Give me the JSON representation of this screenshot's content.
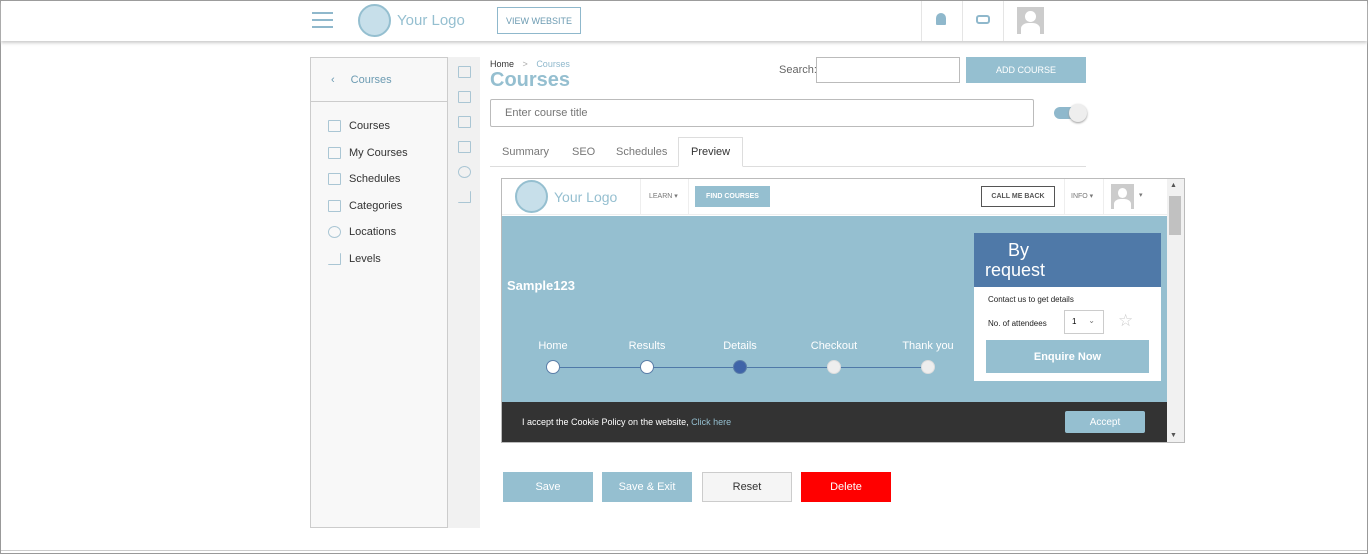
{
  "header": {
    "logo_text": "Your Logo",
    "view_website": "VIEW WEBSITE"
  },
  "sidebar": {
    "back_label": "Courses",
    "items": [
      {
        "label": "Courses",
        "icon": "courses-icon"
      },
      {
        "label": "My Courses",
        "icon": "my-courses-icon"
      },
      {
        "label": "Schedules",
        "icon": "calendar-icon"
      },
      {
        "label": "Categories",
        "icon": "categories-icon"
      },
      {
        "label": "Locations",
        "icon": "location-icon"
      },
      {
        "label": "Levels",
        "icon": "levels-icon"
      }
    ]
  },
  "breadcrumb": {
    "home": "Home",
    "sep": ">",
    "current": "Courses"
  },
  "page_title": "Courses",
  "search": {
    "label": "Search:",
    "value": ""
  },
  "add_course": "ADD COURSE",
  "course_title": {
    "placeholder": "Enter course title",
    "value": ""
  },
  "toggle": {
    "on": true
  },
  "tabs": [
    "Summary",
    "SEO",
    "Schedules",
    "Preview"
  ],
  "active_tab": "Preview",
  "preview": {
    "logo_text": "Your Logo",
    "learn": "LEARN",
    "find_courses": "FIND COURSES",
    "call_me_back": "CALL ME BACK",
    "info": "INFO",
    "course_name": "Sample123",
    "steps": [
      "Home",
      "Results",
      "Details",
      "Checkout",
      "Thank you"
    ],
    "current_step": "Details",
    "card_title_1": "By",
    "card_title_2": "request",
    "contact": "Contact us to get details",
    "attendees_label": "No. of attendees",
    "attendees_value": "1",
    "enquire": "Enquire Now",
    "cookie_text": "I accept the Cookie Policy on the website,",
    "cookie_link": "Click here",
    "accept": "Accept"
  },
  "actions": {
    "save": "Save",
    "save_exit": "Save & Exit",
    "reset": "Reset",
    "delete": "Delete"
  },
  "colors": {
    "accent": "#95bfd0",
    "delete": "#ff0000",
    "card": "#4f79a8",
    "cookie_bar": "#333333"
  }
}
